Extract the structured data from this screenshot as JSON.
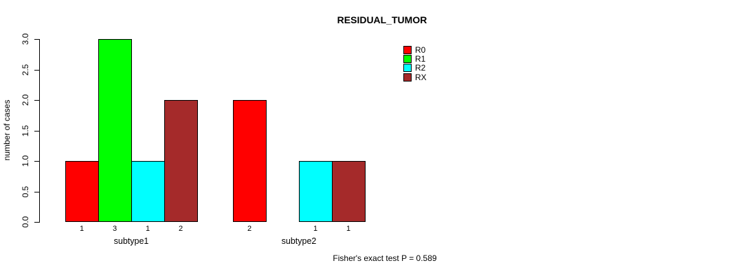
{
  "title": "RESIDUAL_TUMOR",
  "annotation": "Fisher's exact test P = 0.589",
  "chart_data": {
    "type": "bar",
    "title": "RESIDUAL_TUMOR",
    "xlabel": "",
    "ylabel": "number of cases",
    "groups": [
      "subtype1",
      "subtype2"
    ],
    "series": [
      {
        "name": "R0",
        "color": "#FF0000",
        "values": [
          1,
          2
        ]
      },
      {
        "name": "R1",
        "color": "#00FF00",
        "values": [
          3,
          0
        ]
      },
      {
        "name": "R2",
        "color": "#00FFFF",
        "values": [
          1,
          1
        ]
      },
      {
        "name": "RX",
        "color": "#A52A2A",
        "values": [
          2,
          1
        ]
      }
    ],
    "bar_value_labels": [
      [
        "1",
        "3",
        "1",
        "2"
      ],
      [
        "2",
        "",
        "1",
        "1"
      ]
    ],
    "yticks": [
      "0.0",
      "0.5",
      "1.0",
      "1.5",
      "2.0",
      "2.5",
      "3.0"
    ],
    "ylim": [
      0,
      3
    ],
    "grid": false,
    "legend_position": "top-right",
    "legend_entries": [
      "R0",
      "R1",
      "R2",
      "RX"
    ],
    "annotation": "Fisher's exact test P = 0.589"
  }
}
